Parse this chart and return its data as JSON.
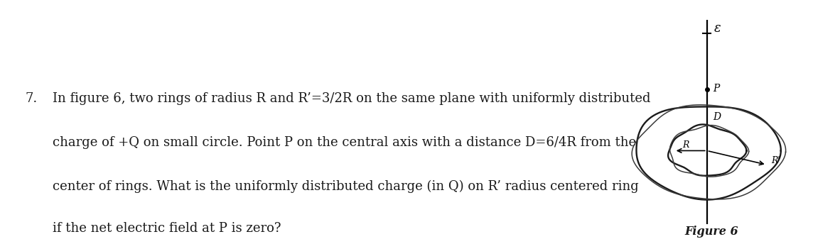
{
  "background_color": "#ffffff",
  "text_color": "#1a1a1a",
  "number": "7.",
  "main_text_lines": [
    "In figure 6, two rings of radius R and R’=3/2R on the same plane with uniformly distributed",
    "charge of +Q on small circle. Point P on the central axis with a distance D=6/4R from the",
    "center of rings. What is the uniformly distributed charge (in Q) on R’ radius centered ring",
    "if the net electric field at P is zero?"
  ],
  "figure_label": "Figure 6",
  "figure_bg_color": "#c8c8d4",
  "text_fontsize": 13.0,
  "number_fontsize": 13.0,
  "fig_label_fontsize": 11.5
}
